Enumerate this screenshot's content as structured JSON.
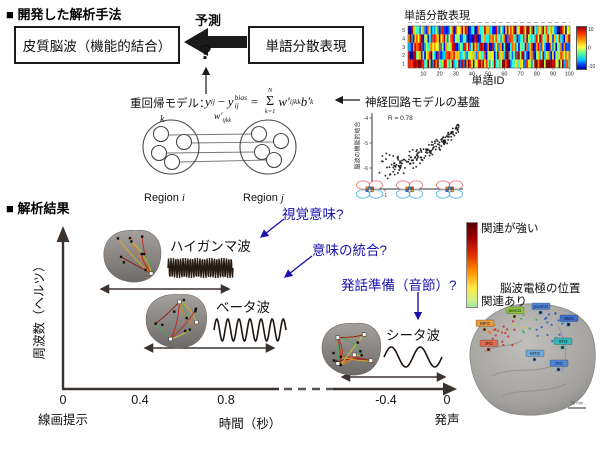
{
  "colors": {
    "annotation_blue": "#1b12ad",
    "axis_dark": "#3a3230",
    "box_border": "#1a1a1a",
    "connection_palette": [
      "#c3261d",
      "#e0791c",
      "#3fae4e",
      "#d6c22e",
      "#8c1a12",
      "#e0a81c"
    ]
  },
  "method_section": {
    "title": "■ 開発した解析手法",
    "cortical_box": "皮質脳波（機能的結合）",
    "word_box": "単語分散表現",
    "predict_label": "予測",
    "question": "?",
    "regression_label": "重回帰モデル：",
    "formula": {
      "y1": "y",
      "y1_sub": "ij",
      "minus": "−",
      "y2": "y",
      "y2_sub": "ij",
      "y2_sup": "bias",
      "equals": "=",
      "sigma": "Σ",
      "sigma_top": "N",
      "sigma_bottom": "k=1",
      "w": "w′",
      "w_sub": "ijkk",
      "b": "b′",
      "b_sub": "k"
    },
    "basis_label": "神経回路モデルの基盤",
    "network": {
      "k_label": "k",
      "weight_w": "w′",
      "weight_sub": "ijkk",
      "region_word": "Region",
      "region_i_var": "i",
      "region_j_var": "j"
    }
  },
  "result_section": {
    "title": "■ 解析結果",
    "electrode_title": "脳波電極の位置",
    "electrode_inset": {
      "labels": [
        "MFG",
        "preCG",
        "postCG",
        "SMG",
        "IFG",
        "STG",
        "MTG",
        "ITG"
      ],
      "scale_label": "50 mm"
    }
  },
  "chart_data": [
    {
      "type": "heatmap",
      "title": "単語分散表現",
      "xlabel": "単語ID",
      "rows": 5,
      "cols": 100,
      "row_tick_labels": [
        "5",
        "4",
        "3",
        "2",
        "1"
      ],
      "x_tick_labels": [
        "10",
        "20",
        "30",
        "40",
        "50",
        "60",
        "70",
        "80",
        "90",
        "100"
      ],
      "colorbar_tick_labels": [
        "10",
        "0",
        "-10"
      ],
      "value_range": [
        -10,
        10
      ],
      "colormap": "jet",
      "note": "5-dimensional word-embedding values for 100 word IDs; cells look random at this resolution",
      "seed": 7
    },
    {
      "type": "scatter",
      "annotation": "R = 0.78",
      "ylabel": "脳波の機能的結合",
      "x_tick_labels": [
        "-1",
        "1"
      ],
      "y_tick_labels": [
        "-4",
        "-5",
        "-6"
      ],
      "xlim": [
        -1.3,
        1.3
      ],
      "ylim": [
        -6.5,
        -3.8
      ],
      "trend": "positive correlation; dense cloud rising toward upper right",
      "n_points_approx": 170,
      "seed": 13
    },
    {
      "type": "diagram-timeline",
      "ylabel": "周波数（ヘルツ）",
      "xlabel": "時間（秒）",
      "x_tick_labels": [
        "0",
        "0.4",
        "0.8",
        "-0.4",
        "0"
      ],
      "axis_break": true,
      "start_event": "線画提示",
      "end_event": "発声",
      "bands": [
        {
          "label": "ハイガンマ波",
          "annotation": "視覚意味?",
          "time_span_s": "≈0.2–0.8 after line-drawing onset",
          "frequency_rank": "high"
        },
        {
          "label": "ベータ波",
          "annotation": "意味の統合?",
          "time_span_s": "≈0.4–1.0",
          "frequency_rank": "middle"
        },
        {
          "label": "シータ波",
          "annotation": "発話準備（音節）?",
          "time_span_s": "≈-0.7–0 before vocalization",
          "frequency_rank": "low"
        }
      ],
      "legend": {
        "strong": "関連が強い",
        "present": "関連あり"
      }
    }
  ]
}
